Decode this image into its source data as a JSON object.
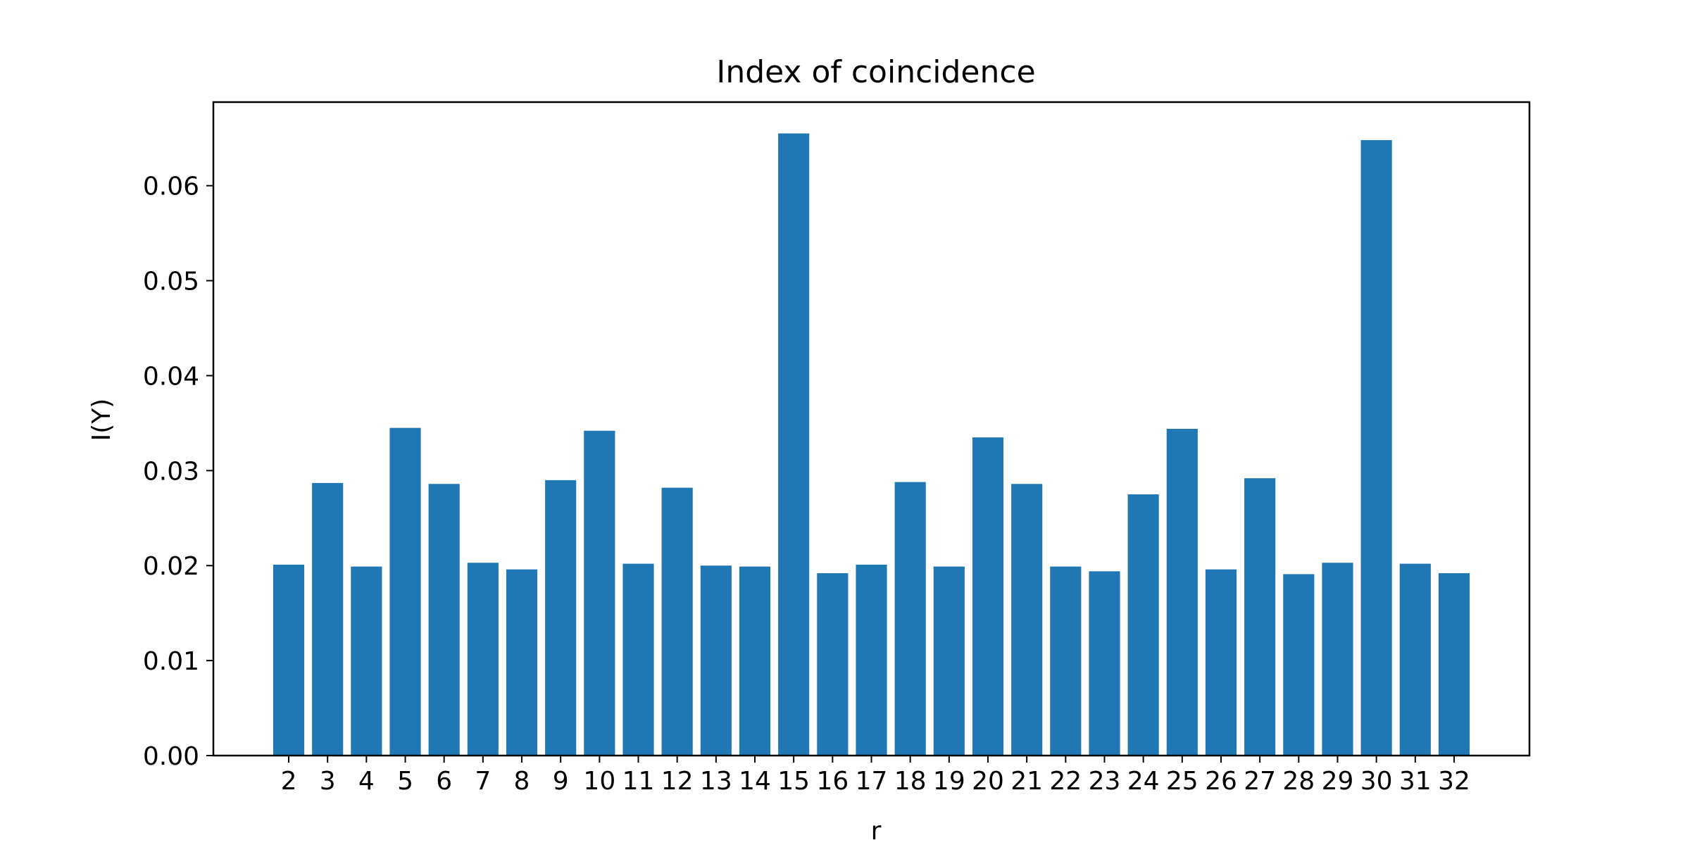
{
  "chart_data": {
    "type": "bar",
    "title": "Index of coincidence",
    "xlabel": "r",
    "ylabel": "I(Y)",
    "categories": [
      "2",
      "3",
      "4",
      "5",
      "6",
      "7",
      "8",
      "9",
      "10",
      "11",
      "12",
      "13",
      "14",
      "15",
      "16",
      "17",
      "18",
      "19",
      "20",
      "21",
      "22",
      "23",
      "24",
      "25",
      "26",
      "27",
      "28",
      "29",
      "30",
      "31",
      "32"
    ],
    "values": [
      0.0201,
      0.0287,
      0.0199,
      0.0345,
      0.0286,
      0.0203,
      0.0196,
      0.029,
      0.0342,
      0.0202,
      0.0282,
      0.02,
      0.0199,
      0.0655,
      0.0192,
      0.0201,
      0.0288,
      0.0199,
      0.0335,
      0.0286,
      0.0199,
      0.0194,
      0.0275,
      0.0344,
      0.0196,
      0.0292,
      0.0191,
      0.0203,
      0.0648,
      0.0202,
      0.0192
    ],
    "ylim": [
      0,
      0.0688
    ],
    "yticks": [
      "0.00",
      "0.01",
      "0.02",
      "0.03",
      "0.04",
      "0.05",
      "0.06"
    ],
    "ytick_values": [
      0,
      0.01,
      0.02,
      0.03,
      0.04,
      0.05,
      0.06
    ],
    "bar_color": "#1f77b4",
    "grid": false,
    "legend": "none"
  }
}
